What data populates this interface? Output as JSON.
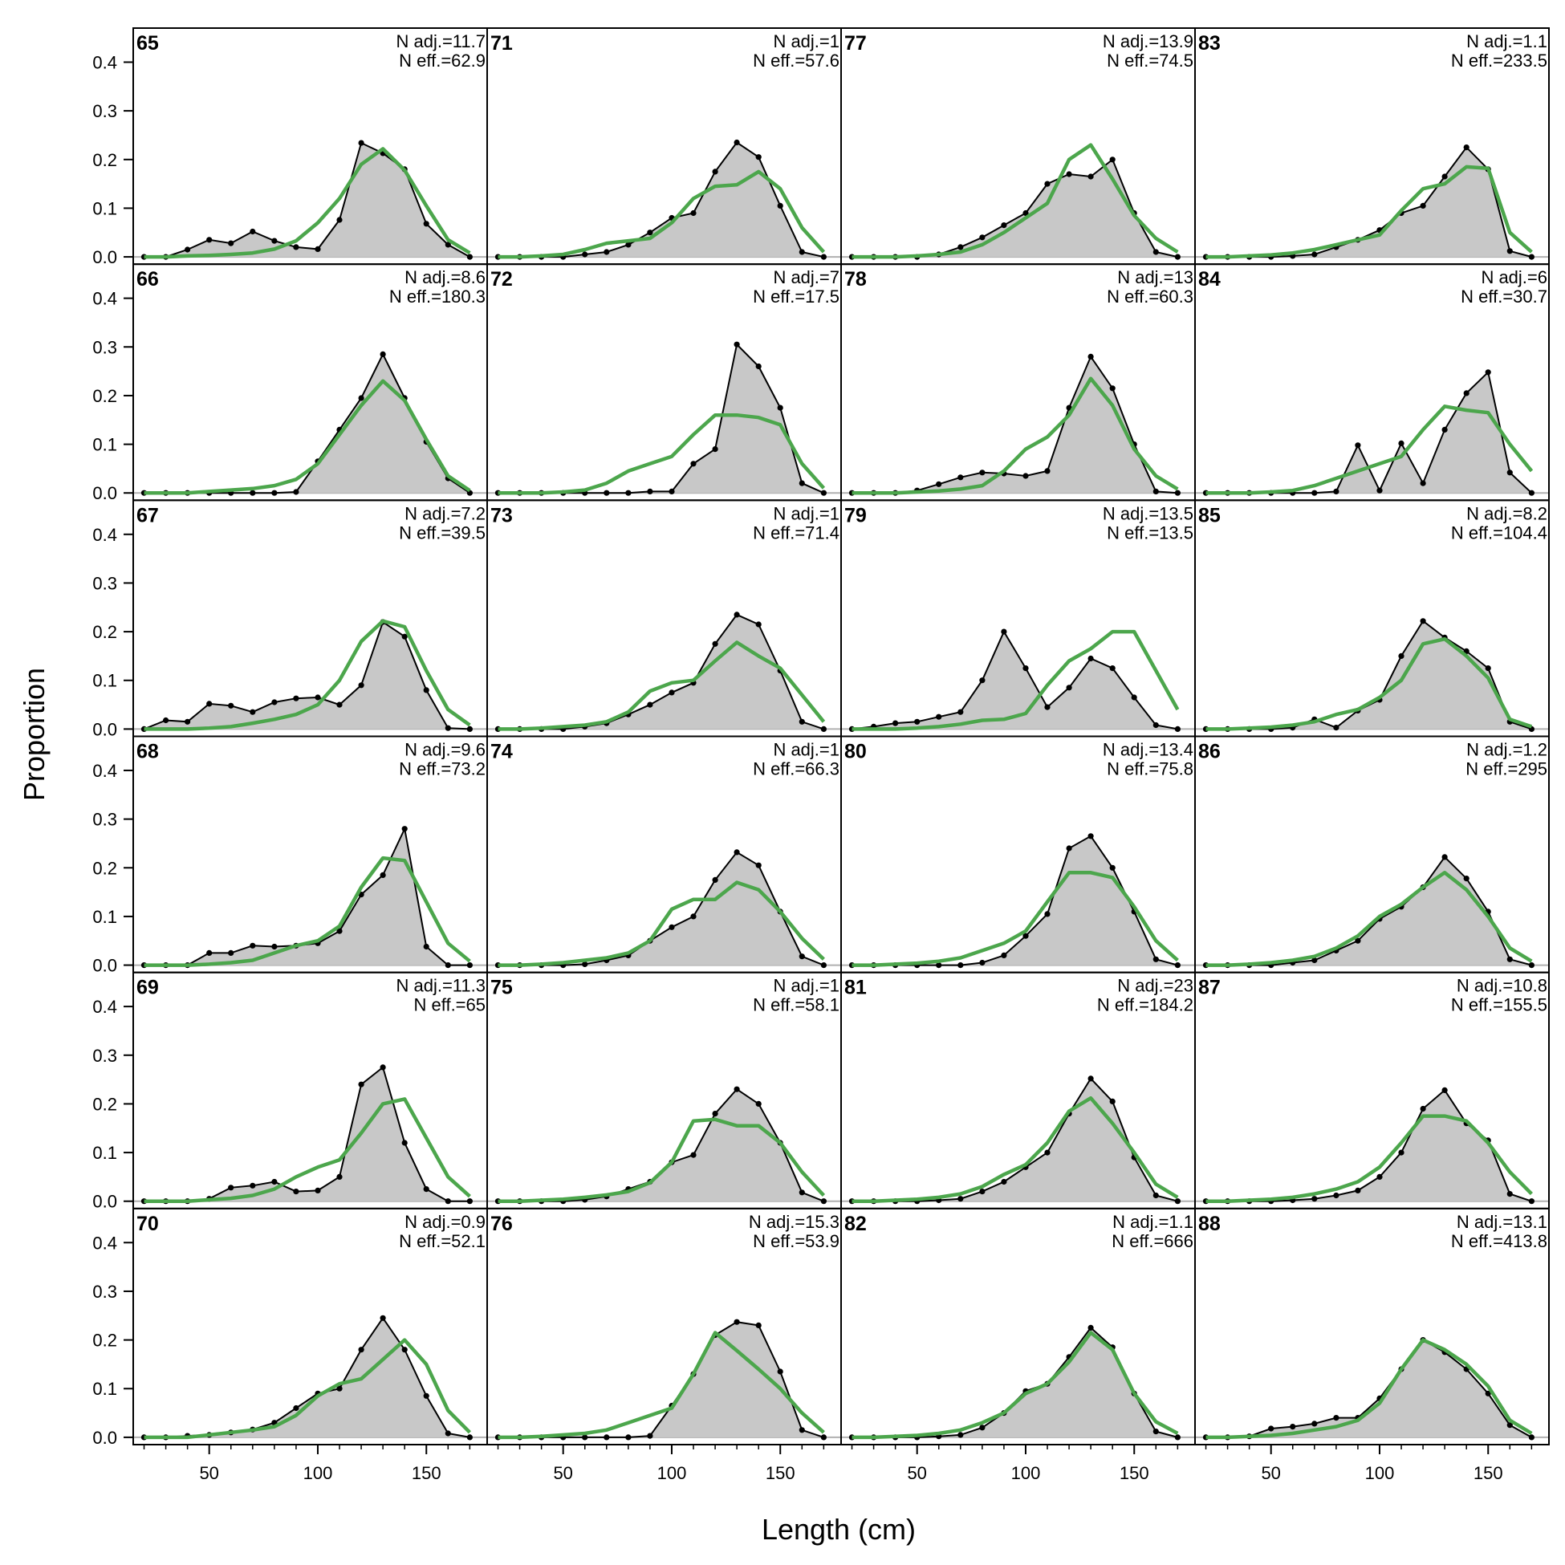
{
  "chart_data": {
    "type": "area",
    "xlabel": "Length (cm)",
    "ylabel": "Proportion",
    "x": [
      20,
      30,
      40,
      50,
      60,
      70,
      80,
      90,
      100,
      110,
      120,
      130,
      140,
      150,
      160,
      170
    ],
    "xlim": [
      15,
      178
    ],
    "ylim": [
      -0.015,
      0.47
    ],
    "xticks": [
      50,
      100,
      150
    ],
    "yticks": [
      0.0,
      0.1,
      0.2,
      0.3,
      0.4
    ],
    "ytick_labels": [
      "0.0",
      "0.1",
      "0.2",
      "0.3",
      "0.4"
    ],
    "grid": false,
    "layout": {
      "rows": 6,
      "cols": 4,
      "fill_order": "column"
    },
    "colors": {
      "observed_fill": "#c8c8c8",
      "observed_line": "#000000",
      "expected_line": "#4ca64c",
      "zero_line": "#b0b0b0"
    },
    "panels": [
      {
        "id": "65",
        "n_adj": "N adj.=11.7",
        "n_eff": "N eff.=62.9",
        "observed": [
          0,
          0,
          0.015,
          0.035,
          0.028,
          0.052,
          0.033,
          0.02,
          0.016,
          0.076,
          0.234,
          0.213,
          0.18,
          0.068,
          0.025,
          0
        ],
        "expected": [
          0,
          0,
          0.002,
          0.003,
          0.005,
          0.008,
          0.016,
          0.033,
          0.07,
          0.12,
          0.19,
          0.222,
          0.178,
          0.105,
          0.035,
          0.008
        ]
      },
      {
        "id": "66",
        "n_adj": "N adj.=8.6",
        "n_eff": "N eff.=180.3",
        "observed": [
          0,
          0,
          0,
          0,
          0,
          0,
          0,
          0.002,
          0.065,
          0.13,
          0.195,
          0.285,
          0.195,
          0.105,
          0.03,
          0
        ],
        "expected": [
          0,
          0,
          0,
          0.003,
          0.006,
          0.009,
          0.015,
          0.028,
          0.06,
          0.12,
          0.18,
          0.23,
          0.19,
          0.11,
          0.035,
          0.005
        ]
      },
      {
        "id": "67",
        "n_adj": "N adj.=7.2",
        "n_eff": "N eff.=39.5",
        "observed": [
          0,
          0.018,
          0.015,
          0.052,
          0.048,
          0.035,
          0.055,
          0.063,
          0.065,
          0.05,
          0.09,
          0.22,
          0.19,
          0.08,
          0.002,
          0
        ],
        "expected": [
          0,
          0,
          0,
          0.002,
          0.005,
          0.012,
          0.02,
          0.03,
          0.05,
          0.1,
          0.18,
          0.222,
          0.21,
          0.12,
          0.04,
          0.008
        ]
      },
      {
        "id": "68",
        "n_adj": "N adj.=9.6",
        "n_eff": "N eff.=73.2",
        "observed": [
          0,
          0,
          0,
          0.025,
          0.025,
          0.04,
          0.038,
          0.04,
          0.045,
          0.07,
          0.145,
          0.185,
          0.28,
          0.038,
          0,
          0
        ],
        "expected": [
          0,
          0,
          0,
          0.002,
          0.005,
          0.01,
          0.025,
          0.04,
          0.05,
          0.08,
          0.16,
          0.22,
          0.215,
          0.13,
          0.045,
          0.008
        ]
      },
      {
        "id": "69",
        "n_adj": "N adj.=11.3",
        "n_eff": "N eff.=65",
        "observed": [
          0,
          0,
          0,
          0.005,
          0.028,
          0.032,
          0.04,
          0.02,
          0.022,
          0.05,
          0.24,
          0.275,
          0.12,
          0.025,
          0,
          0
        ],
        "expected": [
          0,
          0,
          0,
          0.003,
          0.006,
          0.012,
          0.025,
          0.05,
          0.07,
          0.085,
          0.14,
          0.2,
          0.21,
          0.13,
          0.05,
          0.01
        ]
      },
      {
        "id": "70",
        "n_adj": "N adj.=0.9",
        "n_eff": "N eff.=52.1",
        "observed": [
          0,
          0,
          0.003,
          0.005,
          0.01,
          0.016,
          0.03,
          0.06,
          0.09,
          0.1,
          0.18,
          0.245,
          0.18,
          0.085,
          0.008,
          0
        ],
        "expected": [
          0,
          0,
          0,
          0.005,
          0.01,
          0.015,
          0.022,
          0.045,
          0.085,
          0.11,
          0.12,
          0.16,
          0.2,
          0.15,
          0.055,
          0.01
        ]
      },
      {
        "id": "71",
        "n_adj": "N adj.=1",
        "n_eff": "N eff.=57.6",
        "observed": [
          0,
          0,
          0,
          0,
          0.005,
          0.01,
          0.025,
          0.05,
          0.08,
          0.09,
          0.175,
          0.235,
          0.205,
          0.105,
          0.01,
          0
        ],
        "expected": [
          0,
          0,
          0.002,
          0.005,
          0.015,
          0.028,
          0.033,
          0.038,
          0.07,
          0.12,
          0.145,
          0.148,
          0.175,
          0.14,
          0.06,
          0.01
        ]
      },
      {
        "id": "72",
        "n_adj": "N adj.=7",
        "n_eff": "N eff.=17.5",
        "observed": [
          0,
          0,
          0,
          0,
          0,
          0,
          0,
          0.003,
          0.003,
          0.06,
          0.09,
          0.305,
          0.26,
          0.175,
          0.02,
          0
        ],
        "expected": [
          0,
          0,
          0,
          0.002,
          0.006,
          0.02,
          0.045,
          0.06,
          0.075,
          0.12,
          0.16,
          0.16,
          0.155,
          0.14,
          0.06,
          0.01
        ]
      },
      {
        "id": "73",
        "n_adj": "N adj.=1",
        "n_eff": "N eff.=71.4",
        "observed": [
          0,
          0,
          0,
          0,
          0.005,
          0.012,
          0.03,
          0.05,
          0.075,
          0.095,
          0.175,
          0.235,
          0.215,
          0.12,
          0.015,
          0
        ],
        "expected": [
          0,
          0,
          0.002,
          0.005,
          0.008,
          0.015,
          0.035,
          0.078,
          0.095,
          0.1,
          0.14,
          0.178,
          0.15,
          0.125,
          0.07,
          0.015
        ]
      },
      {
        "id": "74",
        "n_adj": "N adj.=1",
        "n_eff": "N eff.=66.3",
        "observed": [
          0,
          0,
          0,
          0,
          0.002,
          0.01,
          0.02,
          0.05,
          0.078,
          0.1,
          0.175,
          0.232,
          0.205,
          0.11,
          0.018,
          0
        ],
        "expected": [
          0,
          0,
          0.002,
          0.005,
          0.01,
          0.015,
          0.025,
          0.05,
          0.115,
          0.135,
          0.135,
          0.17,
          0.155,
          0.11,
          0.055,
          0.012
        ]
      },
      {
        "id": "75",
        "n_adj": "N adj.=1",
        "n_eff": "N eff.=58.1",
        "observed": [
          0,
          0,
          0,
          0,
          0.003,
          0.01,
          0.025,
          0.04,
          0.08,
          0.095,
          0.18,
          0.23,
          0.2,
          0.12,
          0.018,
          0
        ],
        "expected": [
          0,
          0,
          0.002,
          0.004,
          0.008,
          0.013,
          0.02,
          0.038,
          0.08,
          0.165,
          0.168,
          0.155,
          0.155,
          0.12,
          0.06,
          0.012
        ]
      },
      {
        "id": "76",
        "n_adj": "N adj.=15.3",
        "n_eff": "N eff.=53.9",
        "observed": [
          0,
          0,
          0,
          0,
          0,
          0,
          0,
          0.003,
          0.065,
          0.13,
          0.21,
          0.237,
          0.23,
          0.135,
          0.015,
          0
        ],
        "expected": [
          0,
          0,
          0.002,
          0.005,
          0.008,
          0.015,
          0.03,
          0.045,
          0.06,
          0.13,
          0.215,
          0.178,
          0.14,
          0.1,
          0.05,
          0.01
        ]
      },
      {
        "id": "77",
        "n_adj": "N adj.=13.9",
        "n_eff": "N eff.=74.5",
        "observed": [
          0,
          0,
          0,
          0,
          0.005,
          0.02,
          0.04,
          0.065,
          0.09,
          0.15,
          0.17,
          0.165,
          0.2,
          0.09,
          0.01,
          0
        ],
        "expected": [
          0,
          0,
          0,
          0.002,
          0.005,
          0.01,
          0.025,
          0.05,
          0.08,
          0.11,
          0.2,
          0.23,
          0.16,
          0.085,
          0.038,
          0.01
        ]
      },
      {
        "id": "78",
        "n_adj": "N adj.=13",
        "n_eff": "N eff.=60.3",
        "observed": [
          0,
          0,
          0,
          0.005,
          0.018,
          0.032,
          0.042,
          0.04,
          0.035,
          0.045,
          0.175,
          0.28,
          0.215,
          0.1,
          0.003,
          0
        ],
        "expected": [
          0,
          0,
          0,
          0.002,
          0.004,
          0.008,
          0.015,
          0.045,
          0.09,
          0.115,
          0.16,
          0.235,
          0.18,
          0.09,
          0.035,
          0.008
        ]
      },
      {
        "id": "79",
        "n_adj": "N adj.=13.5",
        "n_eff": "N eff.=13.5",
        "observed": [
          0,
          0.005,
          0.012,
          0.015,
          0.025,
          0.035,
          0.1,
          0.2,
          0.125,
          0.045,
          0.085,
          0.145,
          0.125,
          0.065,
          0.008,
          0
        ],
        "expected": [
          0,
          0,
          0,
          0.002,
          0.005,
          0.01,
          0.018,
          0.02,
          0.032,
          0.09,
          0.14,
          0.165,
          0.2,
          0.2,
          0.12,
          0.04
        ]
      },
      {
        "id": "80",
        "n_adj": "N adj.=13.4",
        "n_eff": "N eff.=75.8",
        "observed": [
          0,
          0,
          0,
          0,
          0,
          0,
          0.005,
          0.02,
          0.06,
          0.105,
          0.24,
          0.265,
          0.2,
          0.11,
          0.012,
          0
        ],
        "expected": [
          0,
          0,
          0.002,
          0.004,
          0.008,
          0.015,
          0.03,
          0.045,
          0.07,
          0.13,
          0.19,
          0.19,
          0.18,
          0.12,
          0.05,
          0.01
        ]
      },
      {
        "id": "81",
        "n_adj": "N adj.=23",
        "n_eff": "N eff.=184.2",
        "observed": [
          0,
          0,
          0,
          0,
          0.002,
          0.005,
          0.02,
          0.04,
          0.07,
          0.1,
          0.18,
          0.252,
          0.205,
          0.09,
          0.012,
          0
        ],
        "expected": [
          0,
          0,
          0.002,
          0.004,
          0.008,
          0.015,
          0.03,
          0.055,
          0.075,
          0.12,
          0.185,
          0.212,
          0.16,
          0.1,
          0.035,
          0.008
        ]
      },
      {
        "id": "82",
        "n_adj": "N adj.=1.1",
        "n_eff": "N eff.=666",
        "observed": [
          0,
          0,
          0,
          0,
          0.002,
          0.005,
          0.02,
          0.05,
          0.095,
          0.11,
          0.165,
          0.225,
          0.185,
          0.09,
          0.012,
          0
        ],
        "expected": [
          0,
          0,
          0.002,
          0.004,
          0.008,
          0.015,
          0.03,
          0.05,
          0.09,
          0.11,
          0.155,
          0.215,
          0.18,
          0.09,
          0.032,
          0.008
        ]
      },
      {
        "id": "83",
        "n_adj": "N adj.=1.1",
        "n_eff": "N eff.=233.5",
        "observed": [
          0,
          0,
          0,
          0,
          0.002,
          0.005,
          0.02,
          0.035,
          0.055,
          0.09,
          0.105,
          0.165,
          0.225,
          0.18,
          0.012,
          0
        ],
        "expected": [
          0,
          0,
          0.002,
          0.004,
          0.008,
          0.015,
          0.025,
          0.035,
          0.045,
          0.095,
          0.14,
          0.15,
          0.185,
          0.182,
          0.05,
          0.01
        ]
      },
      {
        "id": "84",
        "n_adj": "N adj.=6",
        "n_eff": "N eff.=30.7",
        "observed": [
          0,
          0,
          0,
          0,
          0,
          0,
          0.003,
          0.098,
          0.005,
          0.102,
          0.02,
          0.13,
          0.205,
          0.248,
          0.042,
          0
        ],
        "expected": [
          0,
          0,
          0,
          0.002,
          0.005,
          0.015,
          0.03,
          0.045,
          0.06,
          0.075,
          0.13,
          0.178,
          0.17,
          0.165,
          0.1,
          0.045
        ]
      },
      {
        "id": "85",
        "n_adj": "N adj.=8.2",
        "n_eff": "N eff.=104.4",
        "observed": [
          0,
          0,
          0,
          0,
          0.003,
          0.02,
          0.003,
          0.038,
          0.06,
          0.15,
          0.222,
          0.188,
          0.16,
          0.125,
          0.015,
          0
        ],
        "expected": [
          0,
          0,
          0.002,
          0.004,
          0.008,
          0.015,
          0.03,
          0.04,
          0.065,
          0.1,
          0.175,
          0.185,
          0.15,
          0.105,
          0.02,
          0.005
        ]
      },
      {
        "id": "86",
        "n_adj": "N adj.=1.2",
        "n_eff": "N eff.=295",
        "observed": [
          0,
          0,
          0,
          0,
          0.005,
          0.01,
          0.03,
          0.05,
          0.095,
          0.12,
          0.16,
          0.222,
          0.178,
          0.11,
          0.012,
          0
        ],
        "expected": [
          0,
          0,
          0.002,
          0.005,
          0.01,
          0.018,
          0.035,
          0.06,
          0.1,
          0.125,
          0.16,
          0.19,
          0.155,
          0.1,
          0.035,
          0.008
        ]
      },
      {
        "id": "87",
        "n_adj": "N adj.=10.8",
        "n_eff": "N eff.=155.5",
        "observed": [
          0,
          0,
          0,
          0,
          0.002,
          0.005,
          0.012,
          0.022,
          0.05,
          0.1,
          0.19,
          0.228,
          0.16,
          0.125,
          0.015,
          0
        ],
        "expected": [
          0,
          0,
          0.002,
          0.004,
          0.008,
          0.015,
          0.025,
          0.04,
          0.07,
          0.12,
          0.175,
          0.175,
          0.165,
          0.12,
          0.06,
          0.015
        ]
      },
      {
        "id": "88",
        "n_adj": "N adj.=13.1",
        "n_eff": "N eff.=413.8",
        "observed": [
          0,
          0,
          0.002,
          0.018,
          0.022,
          0.028,
          0.04,
          0.04,
          0.08,
          0.14,
          0.2,
          0.175,
          0.14,
          0.09,
          0.025,
          0
        ],
        "expected": [
          0,
          0,
          0.002,
          0.004,
          0.008,
          0.015,
          0.022,
          0.035,
          0.07,
          0.14,
          0.2,
          0.18,
          0.15,
          0.105,
          0.035,
          0.008
        ]
      }
    ]
  }
}
